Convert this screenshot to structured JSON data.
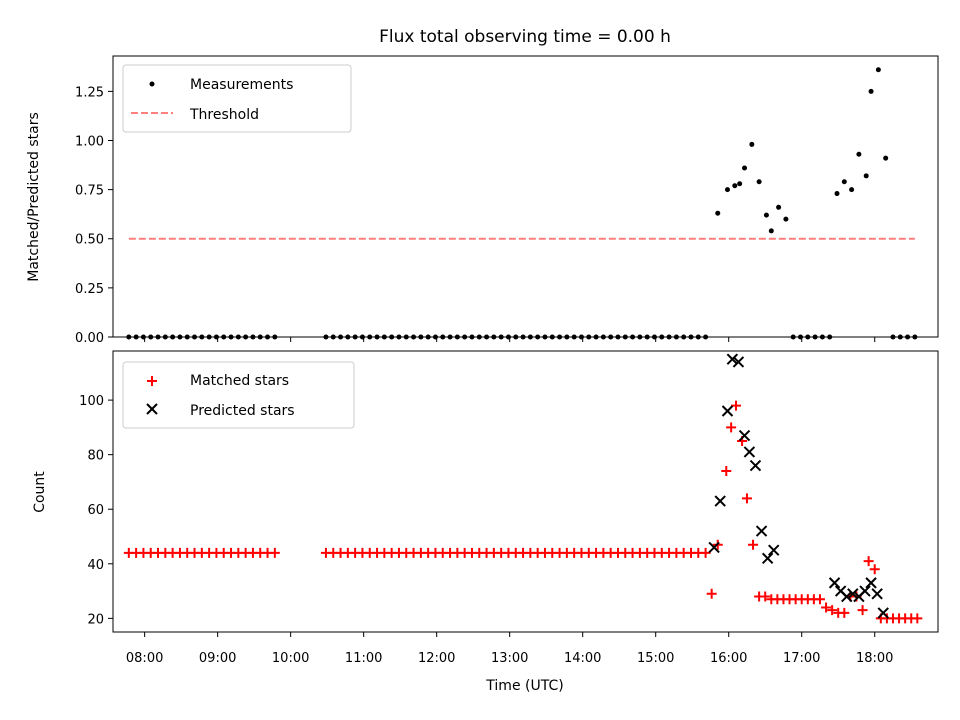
{
  "chart_data": [
    {
      "type": "scatter",
      "title": "Flux total observing time = 0.00 h",
      "xlabel": "",
      "ylabel": "Matched/Predicted stars",
      "ylim": [
        0,
        1.43
      ],
      "yticks": [
        "0.00",
        "0.25",
        "0.50",
        "0.75",
        "1.00",
        "1.25"
      ],
      "legend_position": "top-left",
      "series": [
        {
          "name": "Measurements",
          "marker": "dot",
          "color": "#000000",
          "points": [
            [
              "07:47",
              0
            ],
            [
              "07:53",
              0
            ],
            [
              "07:59",
              0
            ],
            [
              "08:05",
              0
            ],
            [
              "08:11",
              0
            ],
            [
              "08:17",
              0
            ],
            [
              "08:23",
              0
            ],
            [
              "08:29",
              0
            ],
            [
              "08:35",
              0
            ],
            [
              "08:41",
              0
            ],
            [
              "08:47",
              0
            ],
            [
              "08:53",
              0
            ],
            [
              "08:59",
              0
            ],
            [
              "09:05",
              0
            ],
            [
              "09:11",
              0
            ],
            [
              "09:17",
              0
            ],
            [
              "09:23",
              0
            ],
            [
              "09:29",
              0
            ],
            [
              "09:35",
              0
            ],
            [
              "09:41",
              0
            ],
            [
              "09:47",
              0
            ],
            [
              "10:29",
              0
            ],
            [
              "10:35",
              0
            ],
            [
              "10:41",
              0
            ],
            [
              "10:47",
              0
            ],
            [
              "10:53",
              0
            ],
            [
              "10:59",
              0
            ],
            [
              "11:05",
              0
            ],
            [
              "11:11",
              0
            ],
            [
              "11:17",
              0
            ],
            [
              "11:23",
              0
            ],
            [
              "11:29",
              0
            ],
            [
              "11:35",
              0
            ],
            [
              "11:41",
              0
            ],
            [
              "11:47",
              0
            ],
            [
              "11:53",
              0
            ],
            [
              "11:59",
              0
            ],
            [
              "12:05",
              0
            ],
            [
              "12:11",
              0
            ],
            [
              "12:17",
              0
            ],
            [
              "12:23",
              0
            ],
            [
              "12:29",
              0
            ],
            [
              "12:35",
              0
            ],
            [
              "12:41",
              0
            ],
            [
              "12:47",
              0
            ],
            [
              "12:53",
              0
            ],
            [
              "12:59",
              0
            ],
            [
              "13:05",
              0
            ],
            [
              "13:11",
              0
            ],
            [
              "13:17",
              0
            ],
            [
              "13:23",
              0
            ],
            [
              "13:29",
              0
            ],
            [
              "13:35",
              0
            ],
            [
              "13:41",
              0
            ],
            [
              "13:47",
              0
            ],
            [
              "13:53",
              0
            ],
            [
              "13:59",
              0
            ],
            [
              "14:05",
              0
            ],
            [
              "14:11",
              0
            ],
            [
              "14:17",
              0
            ],
            [
              "14:23",
              0
            ],
            [
              "14:29",
              0
            ],
            [
              "14:35",
              0
            ],
            [
              "14:41",
              0
            ],
            [
              "14:47",
              0
            ],
            [
              "14:53",
              0
            ],
            [
              "14:59",
              0
            ],
            [
              "15:05",
              0
            ],
            [
              "15:11",
              0
            ],
            [
              "15:17",
              0
            ],
            [
              "15:23",
              0
            ],
            [
              "15:29",
              0
            ],
            [
              "15:35",
              0
            ],
            [
              "15:41",
              0
            ],
            [
              "15:51",
              0.63
            ],
            [
              "15:59",
              0.75
            ],
            [
              "16:05",
              0.77
            ],
            [
              "16:09",
              0.78
            ],
            [
              "16:13",
              0.86
            ],
            [
              "16:19",
              0.98
            ],
            [
              "16:25",
              0.79
            ],
            [
              "16:31",
              0.62
            ],
            [
              "16:35",
              0.54
            ],
            [
              "16:41",
              0.66
            ],
            [
              "16:47",
              0.6
            ],
            [
              "16:53",
              0
            ],
            [
              "16:59",
              0
            ],
            [
              "17:05",
              0
            ],
            [
              "17:11",
              0
            ],
            [
              "17:17",
              0
            ],
            [
              "17:23",
              0
            ],
            [
              "17:29",
              0.73
            ],
            [
              "17:35",
              0.79
            ],
            [
              "17:41",
              0.75
            ],
            [
              "17:47",
              0.93
            ],
            [
              "17:53",
              0.82
            ],
            [
              "17:57",
              1.25
            ],
            [
              "18:03",
              1.36
            ],
            [
              "18:09",
              0.91
            ],
            [
              "18:15",
              0
            ],
            [
              "18:21",
              0
            ],
            [
              "18:27",
              0
            ],
            [
              "18:33",
              0
            ]
          ]
        },
        {
          "name": "Threshold",
          "marker": "dashed-line",
          "color": "#ff7f7f",
          "points": [
            [
              "07:47",
              0.5
            ],
            [
              "18:33",
              0.5
            ]
          ]
        }
      ]
    },
    {
      "type": "scatter",
      "title": "",
      "xlabel": "Time (UTC)",
      "ylabel": "Count",
      "ylim": [
        15,
        118
      ],
      "yticks": [
        "20",
        "40",
        "60",
        "80",
        "100"
      ],
      "xticks": [
        "08:00",
        "09:00",
        "10:00",
        "11:00",
        "12:00",
        "13:00",
        "14:00",
        "15:00",
        "16:00",
        "17:00",
        "18:00"
      ],
      "xlim": [
        "07:34",
        "18:52"
      ],
      "legend_position": "top-left",
      "series": [
        {
          "name": "Matched stars",
          "marker": "plus",
          "color": "#ff0000",
          "points": [
            [
              "07:47",
              44
            ],
            [
              "07:53",
              44
            ],
            [
              "07:59",
              44
            ],
            [
              "08:05",
              44
            ],
            [
              "08:11",
              44
            ],
            [
              "08:17",
              44
            ],
            [
              "08:23",
              44
            ],
            [
              "08:29",
              44
            ],
            [
              "08:35",
              44
            ],
            [
              "08:41",
              44
            ],
            [
              "08:47",
              44
            ],
            [
              "08:53",
              44
            ],
            [
              "08:59",
              44
            ],
            [
              "09:05",
              44
            ],
            [
              "09:11",
              44
            ],
            [
              "09:17",
              44
            ],
            [
              "09:23",
              44
            ],
            [
              "09:29",
              44
            ],
            [
              "09:35",
              44
            ],
            [
              "09:41",
              44
            ],
            [
              "09:47",
              44
            ],
            [
              "10:29",
              44
            ],
            [
              "10:35",
              44
            ],
            [
              "10:41",
              44
            ],
            [
              "10:47",
              44
            ],
            [
              "10:53",
              44
            ],
            [
              "10:59",
              44
            ],
            [
              "11:05",
              44
            ],
            [
              "11:11",
              44
            ],
            [
              "11:17",
              44
            ],
            [
              "11:23",
              44
            ],
            [
              "11:29",
              44
            ],
            [
              "11:35",
              44
            ],
            [
              "11:41",
              44
            ],
            [
              "11:47",
              44
            ],
            [
              "11:53",
              44
            ],
            [
              "11:59",
              44
            ],
            [
              "12:05",
              44
            ],
            [
              "12:11",
              44
            ],
            [
              "12:17",
              44
            ],
            [
              "12:23",
              44
            ],
            [
              "12:29",
              44
            ],
            [
              "12:35",
              44
            ],
            [
              "12:41",
              44
            ],
            [
              "12:47",
              44
            ],
            [
              "12:53",
              44
            ],
            [
              "12:59",
              44
            ],
            [
              "13:05",
              44
            ],
            [
              "13:11",
              44
            ],
            [
              "13:17",
              44
            ],
            [
              "13:23",
              44
            ],
            [
              "13:29",
              44
            ],
            [
              "13:35",
              44
            ],
            [
              "13:41",
              44
            ],
            [
              "13:47",
              44
            ],
            [
              "13:53",
              44
            ],
            [
              "13:59",
              44
            ],
            [
              "14:05",
              44
            ],
            [
              "14:11",
              44
            ],
            [
              "14:17",
              44
            ],
            [
              "14:23",
              44
            ],
            [
              "14:29",
              44
            ],
            [
              "14:35",
              44
            ],
            [
              "14:41",
              44
            ],
            [
              "14:47",
              44
            ],
            [
              "14:53",
              44
            ],
            [
              "14:59",
              44
            ],
            [
              "15:05",
              44
            ],
            [
              "15:11",
              44
            ],
            [
              "15:17",
              44
            ],
            [
              "15:23",
              44
            ],
            [
              "15:29",
              44
            ],
            [
              "15:35",
              44
            ],
            [
              "15:41",
              44
            ],
            [
              "15:46",
              29
            ],
            [
              "15:51",
              47
            ],
            [
              "15:58",
              74
            ],
            [
              "16:02",
              90
            ],
            [
              "16:06",
              98
            ],
            [
              "16:11",
              85
            ],
            [
              "16:15",
              64
            ],
            [
              "16:20",
              47
            ],
            [
              "16:25",
              28
            ],
            [
              "16:30",
              28
            ],
            [
              "16:35",
              27
            ],
            [
              "16:40",
              27
            ],
            [
              "16:45",
              27
            ],
            [
              "16:50",
              27
            ],
            [
              "16:55",
              27
            ],
            [
              "17:00",
              27
            ],
            [
              "17:05",
              27
            ],
            [
              "17:10",
              27
            ],
            [
              "17:15",
              27
            ],
            [
              "17:20",
              24
            ],
            [
              "17:25",
              23
            ],
            [
              "17:30",
              22
            ],
            [
              "17:35",
              22
            ],
            [
              "17:40",
              28
            ],
            [
              "17:45",
              28
            ],
            [
              "17:50",
              23
            ],
            [
              "17:55",
              41
            ],
            [
              "18:00",
              38
            ],
            [
              "18:05",
              20
            ],
            [
              "18:10",
              20
            ],
            [
              "18:15",
              20
            ],
            [
              "18:20",
              20
            ],
            [
              "18:25",
              20
            ],
            [
              "18:30",
              20
            ],
            [
              "18:35",
              20
            ]
          ]
        },
        {
          "name": "Predicted stars",
          "marker": "x",
          "color": "#000000",
          "points": [
            [
              "15:48",
              46
            ],
            [
              "15:53",
              63
            ],
            [
              "15:59",
              96
            ],
            [
              "16:03",
              115
            ],
            [
              "16:08",
              114
            ],
            [
              "16:13",
              87
            ],
            [
              "16:17",
              81
            ],
            [
              "16:22",
              76
            ],
            [
              "16:27",
              52
            ],
            [
              "16:32",
              42
            ],
            [
              "16:37",
              45
            ],
            [
              "17:27",
              33
            ],
            [
              "17:32",
              30
            ],
            [
              "17:37",
              28
            ],
            [
              "17:42",
              29
            ],
            [
              "17:47",
              28
            ],
            [
              "17:52",
              30
            ],
            [
              "17:57",
              33
            ],
            [
              "18:02",
              29
            ],
            [
              "18:07",
              22
            ]
          ]
        }
      ]
    }
  ]
}
